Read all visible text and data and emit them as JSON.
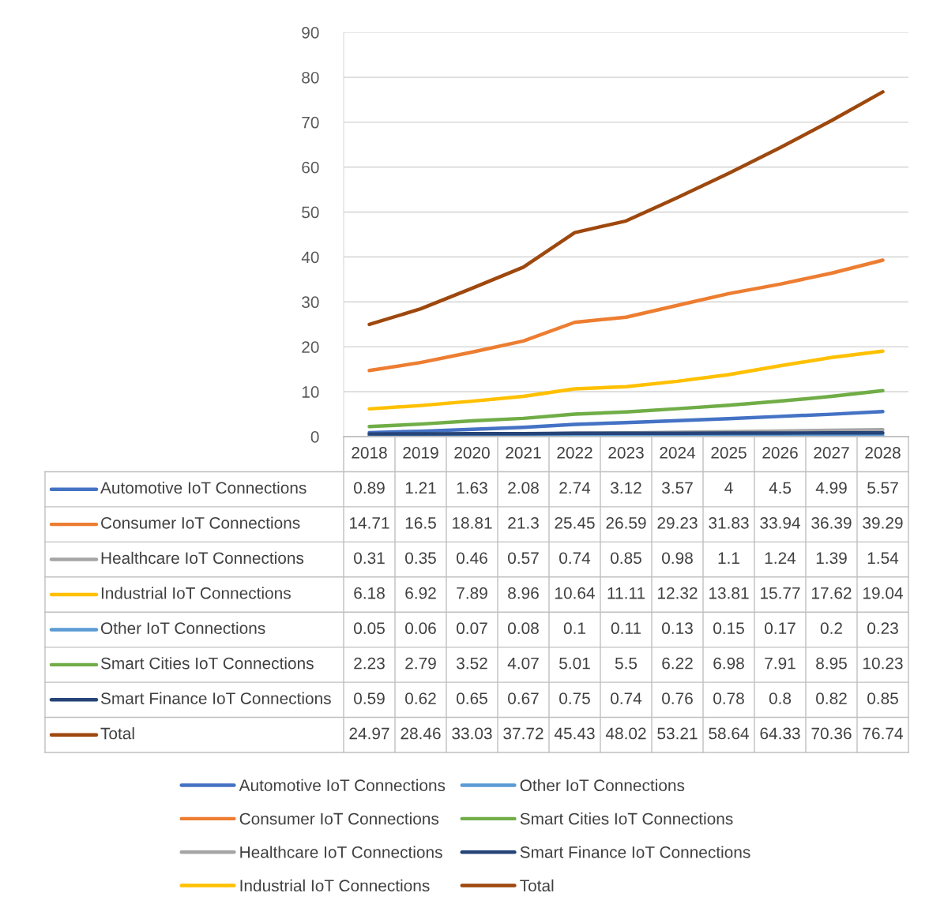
{
  "chart_data": {
    "type": "line",
    "categories": [
      "2018",
      "2019",
      "2020",
      "2021",
      "2022",
      "2023",
      "2024",
      "2025",
      "2026",
      "2027",
      "2028"
    ],
    "series": [
      {
        "name": "Automotive IoT Connections",
        "color": "#4472c4",
        "values": [
          0.89,
          1.21,
          1.63,
          2.08,
          2.74,
          3.12,
          3.57,
          4,
          4.5,
          4.99,
          5.57
        ]
      },
      {
        "name": "Consumer IoT Connections",
        "color": "#ed7d31",
        "values": [
          14.71,
          16.5,
          18.81,
          21.3,
          25.45,
          26.59,
          29.23,
          31.83,
          33.94,
          36.39,
          39.29
        ]
      },
      {
        "name": "Healthcare IoT Connections",
        "color": "#a5a5a5",
        "values": [
          0.31,
          0.35,
          0.46,
          0.57,
          0.74,
          0.85,
          0.98,
          1.1,
          1.24,
          1.39,
          1.54
        ]
      },
      {
        "name": "Industrial IoT Connections",
        "color": "#ffc000",
        "values": [
          6.18,
          6.92,
          7.89,
          8.96,
          10.64,
          11.11,
          12.32,
          13.81,
          15.77,
          17.62,
          19.04
        ]
      },
      {
        "name": "Other IoT Connections",
        "color": "#5b9bd5",
        "values": [
          0.05,
          0.06,
          0.07,
          0.08,
          0.1,
          0.11,
          0.13,
          0.15,
          0.17,
          0.2,
          0.23
        ]
      },
      {
        "name": "Smart Cities IoT Connections",
        "color": "#70ad47",
        "values": [
          2.23,
          2.79,
          3.52,
          4.07,
          5.01,
          5.5,
          6.22,
          6.98,
          7.91,
          8.95,
          10.23
        ]
      },
      {
        "name": "Smart Finance IoT Connections",
        "color": "#264478",
        "values": [
          0.59,
          0.62,
          0.65,
          0.67,
          0.75,
          0.74,
          0.76,
          0.78,
          0.8,
          0.82,
          0.85
        ]
      },
      {
        "name": "Total",
        "color": "#9e480e",
        "values": [
          24.97,
          28.46,
          33.03,
          37.72,
          45.43,
          48.02,
          53.21,
          58.64,
          64.33,
          70.36,
          76.74
        ]
      }
    ],
    "ylim": [
      0,
      90
    ],
    "yticks": [
      0,
      10,
      20,
      30,
      40,
      50,
      60,
      70,
      80,
      90
    ],
    "grid": "y",
    "legend": "bottom",
    "data_labels": true,
    "marker": "none",
    "line_style": "solid"
  }
}
